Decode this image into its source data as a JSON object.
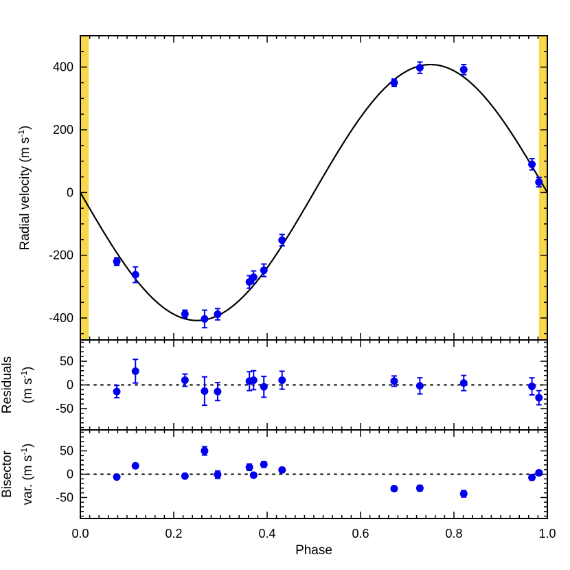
{
  "chart_data": [
    {
      "type": "scatter",
      "panel": "radial-velocity",
      "ylabel_lines": [
        {
          "parts": [
            {
              "t": "Radial velocity (m s"
            },
            {
              "t": "-1",
              "sup": true
            },
            {
              "t": ")"
            }
          ]
        }
      ],
      "xlim": [
        0.0,
        1.0
      ],
      "ylim": [
        -470,
        500
      ],
      "yticks": [
        {
          "v": 400,
          "label": "400"
        },
        {
          "v": 200,
          "label": "200"
        },
        {
          "v": 0,
          "label": "0"
        },
        {
          "v": -200,
          "label": "-200"
        },
        {
          "v": -400,
          "label": "-400"
        }
      ],
      "shaded_x_ranges": [
        [
          0.0,
          0.018
        ],
        [
          0.982,
          1.0
        ]
      ],
      "shade_color": "#f7d84a",
      "model_curve": {
        "type": "sinusoid",
        "K": 408,
        "gamma": 7,
        "phase_zero": 0.0
      },
      "points": [
        {
          "x": 0.078,
          "y": -220,
          "err": 12
        },
        {
          "x": 0.118,
          "y": -262,
          "err": 25
        },
        {
          "x": 0.224,
          "y": -387,
          "err": 12
        },
        {
          "x": 0.266,
          "y": -403,
          "err": 28
        },
        {
          "x": 0.294,
          "y": -388,
          "err": 18
        },
        {
          "x": 0.362,
          "y": -285,
          "err": 20
        },
        {
          "x": 0.371,
          "y": -270,
          "err": 20
        },
        {
          "x": 0.393,
          "y": -248,
          "err": 20
        },
        {
          "x": 0.432,
          "y": -152,
          "err": 18
        },
        {
          "x": 0.672,
          "y": 350,
          "err": 12
        },
        {
          "x": 0.727,
          "y": 398,
          "err": 18
        },
        {
          "x": 0.821,
          "y": 392,
          "err": 16
        },
        {
          "x": 0.967,
          "y": 90,
          "err": 18
        },
        {
          "x": 0.982,
          "y": 33,
          "err": 15
        }
      ],
      "point_color": "#0000ee"
    },
    {
      "type": "scatter",
      "panel": "residuals",
      "ylabel_lines": [
        {
          "parts": [
            {
              "t": "Residuals"
            }
          ]
        },
        {
          "parts": [
            {
              "t": "(m s"
            },
            {
              "t": "-1",
              "sup": true
            },
            {
              "t": ")"
            }
          ]
        }
      ],
      "xlim": [
        0.0,
        1.0
      ],
      "ylim": [
        -95,
        95
      ],
      "yticks": [
        {
          "v": 50,
          "label": "50"
        },
        {
          "v": 0,
          "label": "0"
        },
        {
          "v": -50,
          "label": "-50"
        }
      ],
      "zero_line": true,
      "points": [
        {
          "x": 0.078,
          "y": -14,
          "err": 13
        },
        {
          "x": 0.118,
          "y": 29,
          "err": 25
        },
        {
          "x": 0.224,
          "y": 10,
          "err": 13
        },
        {
          "x": 0.266,
          "y": -13,
          "err": 30
        },
        {
          "x": 0.294,
          "y": -14,
          "err": 19
        },
        {
          "x": 0.362,
          "y": 8,
          "err": 20
        },
        {
          "x": 0.371,
          "y": 10,
          "err": 20
        },
        {
          "x": 0.393,
          "y": -4,
          "err": 22
        },
        {
          "x": 0.432,
          "y": 10,
          "err": 19
        },
        {
          "x": 0.672,
          "y": 8,
          "err": 11
        },
        {
          "x": 0.727,
          "y": -2,
          "err": 17
        },
        {
          "x": 0.821,
          "y": 4,
          "err": 16
        },
        {
          "x": 0.967,
          "y": -3,
          "err": 18
        },
        {
          "x": 0.982,
          "y": -27,
          "err": 15
        }
      ],
      "point_color": "#0000ee"
    },
    {
      "type": "scatter",
      "panel": "bisector",
      "ylabel_lines": [
        {
          "parts": [
            {
              "t": "Bisector"
            }
          ]
        },
        {
          "parts": [
            {
              "t": "var. (m s"
            },
            {
              "t": "-1",
              "sup": true
            },
            {
              "t": ")"
            }
          ]
        }
      ],
      "xlabel": "Phase",
      "xlim": [
        0.0,
        1.0
      ],
      "ylim": [
        -95,
        95
      ],
      "yticks": [
        {
          "v": 50,
          "label": "50"
        },
        {
          "v": 0,
          "label": "0"
        },
        {
          "v": -50,
          "label": "-50"
        }
      ],
      "xticks": [
        {
          "v": 0.0,
          "label": "0.0"
        },
        {
          "v": 0.2,
          "label": "0.2"
        },
        {
          "v": 0.4,
          "label": "0.4"
        },
        {
          "v": 0.6,
          "label": "0.6"
        },
        {
          "v": 0.8,
          "label": "0.8"
        },
        {
          "v": 1.0,
          "label": "1.0"
        }
      ],
      "zero_line": true,
      "points": [
        {
          "x": 0.078,
          "y": -6,
          "err": 4
        },
        {
          "x": 0.118,
          "y": 18,
          "err": 5
        },
        {
          "x": 0.224,
          "y": -4,
          "err": 4
        },
        {
          "x": 0.266,
          "y": 50,
          "err": 9
        },
        {
          "x": 0.294,
          "y": -1,
          "err": 8
        },
        {
          "x": 0.362,
          "y": 15,
          "err": 7
        },
        {
          "x": 0.371,
          "y": -2,
          "err": 5
        },
        {
          "x": 0.393,
          "y": 21,
          "err": 6
        },
        {
          "x": 0.432,
          "y": 9,
          "err": 5
        },
        {
          "x": 0.672,
          "y": -31,
          "err": 5
        },
        {
          "x": 0.727,
          "y": -30,
          "err": 6
        },
        {
          "x": 0.821,
          "y": -42,
          "err": 7
        },
        {
          "x": 0.967,
          "y": -7,
          "err": 5
        },
        {
          "x": 0.982,
          "y": 3,
          "err": 5
        }
      ],
      "point_color": "#0000ee"
    }
  ]
}
